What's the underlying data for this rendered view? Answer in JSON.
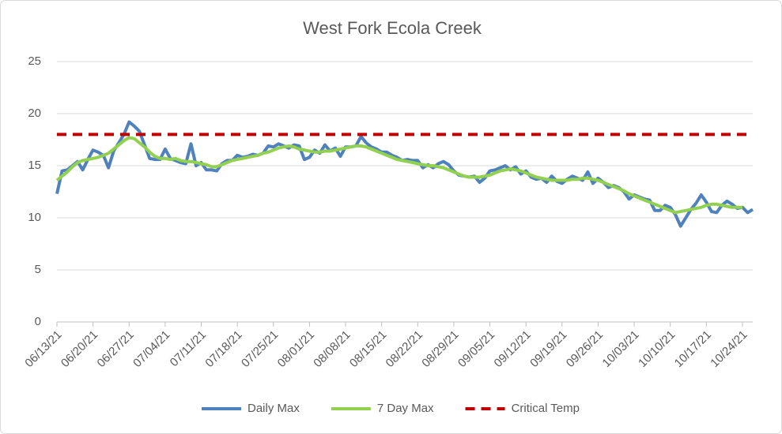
{
  "chart_data": {
    "type": "line",
    "title": "West Fork Ecola Creek",
    "categories": [
      "06/13/21",
      null,
      null,
      null,
      null,
      null,
      null,
      "06/20/21",
      null,
      null,
      null,
      null,
      null,
      null,
      "06/27/21",
      null,
      null,
      null,
      null,
      null,
      null,
      "07/04/21",
      null,
      null,
      null,
      null,
      null,
      null,
      "07/11/21",
      null,
      null,
      null,
      null,
      null,
      null,
      "07/18/21",
      null,
      null,
      null,
      null,
      null,
      null,
      "07/25/21",
      null,
      null,
      null,
      null,
      null,
      null,
      "08/01/21",
      null,
      null,
      null,
      null,
      null,
      null,
      "08/08/21",
      null,
      null,
      null,
      null,
      null,
      null,
      "08/15/21",
      null,
      null,
      null,
      null,
      null,
      null,
      "08/22/21",
      null,
      null,
      null,
      null,
      null,
      null,
      "08/29/21",
      null,
      null,
      null,
      null,
      null,
      null,
      "09/05/21",
      null,
      null,
      null,
      null,
      null,
      null,
      "09/12/21",
      null,
      null,
      null,
      null,
      null,
      null,
      "09/19/21",
      null,
      null,
      null,
      null,
      null,
      null,
      "09/26/21",
      null,
      null,
      null,
      null,
      null,
      null,
      "10/03/21",
      null,
      null,
      null,
      null,
      null,
      null,
      "10/10/21",
      null,
      null,
      null,
      null,
      null,
      null,
      "10/17/21",
      null,
      null,
      null,
      null,
      null,
      null,
      "10/24/21",
      null,
      null
    ],
    "series": [
      {
        "name": "Daily Max",
        "color": "#4f81bd",
        "dash": false,
        "values": [
          12.3,
          14.5,
          14.6,
          15.0,
          15.4,
          14.6,
          15.6,
          16.5,
          16.3,
          16.0,
          14.8,
          16.4,
          17.2,
          18.0,
          19.2,
          18.8,
          18.3,
          17.0,
          15.7,
          15.6,
          15.6,
          16.6,
          15.7,
          15.5,
          15.3,
          15.2,
          17.1,
          15.0,
          15.3,
          14.6,
          14.6,
          14.5,
          15.2,
          15.5,
          15.5,
          16.0,
          15.8,
          15.9,
          16.1,
          16.0,
          16.2,
          16.9,
          16.8,
          17.1,
          16.9,
          16.7,
          17.0,
          16.9,
          15.6,
          15.8,
          16.5,
          16.2,
          17.0,
          16.4,
          16.7,
          15.9,
          16.8,
          16.8,
          16.9,
          17.8,
          17.2,
          16.8,
          16.6,
          16.3,
          16.3,
          16.0,
          15.8,
          15.5,
          15.6,
          15.5,
          15.5,
          14.8,
          15.1,
          14.8,
          15.2,
          15.4,
          15.1,
          14.5,
          14.1,
          14.0,
          13.9,
          14.0,
          13.4,
          13.8,
          14.5,
          14.6,
          14.8,
          15.0,
          14.6,
          14.9,
          14.2,
          14.5,
          13.9,
          13.7,
          13.8,
          13.4,
          14.0,
          13.5,
          13.3,
          13.7,
          14.0,
          13.8,
          13.6,
          14.4,
          13.3,
          13.8,
          13.4,
          12.9,
          13.1,
          12.9,
          12.5,
          11.8,
          12.2,
          12.0,
          11.8,
          11.7,
          10.7,
          10.7,
          11.2,
          11.0,
          10.3,
          9.2,
          10.0,
          10.8,
          11.4,
          12.2,
          11.5,
          10.6,
          10.5,
          11.2,
          11.6,
          11.3,
          10.9,
          11.0,
          10.5,
          10.8
        ]
      },
      {
        "name": "7 Day Max",
        "color": "#92d050",
        "dash": false,
        "values": [
          13.6,
          14.0,
          14.4,
          14.9,
          15.3,
          15.5,
          15.6,
          15.7,
          15.8,
          16.0,
          16.2,
          16.6,
          17.0,
          17.4,
          17.7,
          17.6,
          17.2,
          16.8,
          16.3,
          15.9,
          15.7,
          15.7,
          15.6,
          15.7,
          15.5,
          15.4,
          15.4,
          15.3,
          15.2,
          15.1,
          14.9,
          14.9,
          15.1,
          15.3,
          15.5,
          15.6,
          15.7,
          15.8,
          15.9,
          16.0,
          16.2,
          16.3,
          16.5,
          16.7,
          16.8,
          16.9,
          16.8,
          16.6,
          16.5,
          16.4,
          16.3,
          16.3,
          16.4,
          16.4,
          16.5,
          16.6,
          16.7,
          16.8,
          16.9,
          16.9,
          16.8,
          16.6,
          16.4,
          16.2,
          16.0,
          15.8,
          15.6,
          15.5,
          15.4,
          15.3,
          15.2,
          15.1,
          15.0,
          15.0,
          14.9,
          14.8,
          14.6,
          14.4,
          14.2,
          14.0,
          13.9,
          13.9,
          13.9,
          14.0,
          14.1,
          14.3,
          14.5,
          14.6,
          14.7,
          14.6,
          14.5,
          14.3,
          14.1,
          13.9,
          13.8,
          13.7,
          13.6,
          13.6,
          13.6,
          13.6,
          13.7,
          13.7,
          13.8,
          13.8,
          13.7,
          13.6,
          13.4,
          13.2,
          13.0,
          12.8,
          12.6,
          12.3,
          12.1,
          11.9,
          11.7,
          11.5,
          11.3,
          11.1,
          10.9,
          10.7,
          10.5,
          10.6,
          10.7,
          10.8,
          10.9,
          11.0,
          11.2,
          11.3,
          11.3,
          11.2,
          11.1,
          11.0,
          11.0,
          11.0,
          null,
          null
        ]
      },
      {
        "name": "Critical Temp",
        "color": "#c00000",
        "dash": true,
        "values": [
          18,
          18,
          18,
          18,
          18,
          18,
          18,
          18,
          18,
          18,
          18,
          18,
          18,
          18,
          18,
          18,
          18,
          18,
          18,
          18,
          18,
          18,
          18,
          18,
          18,
          18,
          18,
          18,
          18,
          18,
          18,
          18,
          18,
          18,
          18,
          18,
          18,
          18,
          18,
          18,
          18,
          18,
          18,
          18,
          18,
          18,
          18,
          18,
          18,
          18,
          18,
          18,
          18,
          18,
          18,
          18,
          18,
          18,
          18,
          18,
          18,
          18,
          18,
          18,
          18,
          18,
          18,
          18,
          18,
          18,
          18,
          18,
          18,
          18,
          18,
          18,
          18,
          18,
          18,
          18,
          18,
          18,
          18,
          18,
          18,
          18,
          18,
          18,
          18,
          18,
          18,
          18,
          18,
          18,
          18,
          18,
          18,
          18,
          18,
          18,
          18,
          18,
          18,
          18,
          18,
          18,
          18,
          18,
          18,
          18,
          18,
          18,
          18,
          18,
          18,
          18,
          18,
          18,
          18,
          18,
          18,
          18,
          18,
          18,
          18,
          18,
          18,
          18,
          18,
          18,
          18,
          18,
          18,
          18,
          18,
          18
        ]
      }
    ],
    "ylim": [
      0,
      25
    ],
    "yticks": [
      0,
      5,
      10,
      15,
      20,
      25
    ],
    "grid": true,
    "legend": "bottom"
  }
}
